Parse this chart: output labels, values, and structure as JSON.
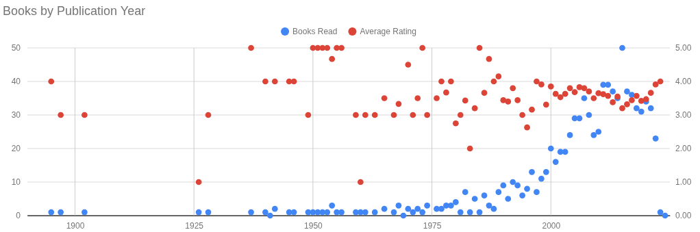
{
  "chart_data": {
    "type": "scatter",
    "title": "Books by Publication Year",
    "xlim": [
      1890,
      2025
    ],
    "xticks": [
      1900,
      1925,
      1950,
      1975,
      2000
    ],
    "ylim": [
      0,
      50
    ],
    "yticks": [
      0,
      10,
      20,
      30,
      40,
      50
    ],
    "y2lim": [
      0,
      5
    ],
    "y2ticks": [
      {
        "value": 0,
        "label": "0.00"
      },
      {
        "value": 1,
        "label": "1.00"
      },
      {
        "value": 2,
        "label": "2.00"
      },
      {
        "value": 3,
        "label": "3.00"
      },
      {
        "value": 4,
        "label": "4.00"
      },
      {
        "value": 5,
        "label": "5.00"
      }
    ],
    "grid": true,
    "legend": "top",
    "marker": "circle",
    "series": [
      {
        "name": "Books Read",
        "color": "#4285f4",
        "x": [
          1895,
          1897,
          1902,
          1926,
          1928,
          1937,
          1940,
          1941,
          1942,
          1945,
          1946,
          1949,
          1950,
          1951,
          1952,
          1953,
          1954,
          1955,
          1956,
          1959,
          1960,
          1961,
          1963,
          1965,
          1967,
          1968,
          1969,
          1970,
          1971,
          1972,
          1973,
          1974,
          1976,
          1977,
          1978,
          1979,
          1980,
          1981,
          1982,
          1983,
          1984,
          1985,
          1986,
          1987,
          1988,
          1989,
          1990,
          1991,
          1992,
          1993,
          1994,
          1995,
          1996,
          1997,
          1998,
          1999,
          2000,
          2001,
          2002,
          2003,
          2004,
          2005,
          2006,
          2007,
          2008,
          2009,
          2010,
          2011,
          2012,
          2013,
          2014,
          2015,
          2016,
          2017,
          2018,
          2019,
          2020,
          2021,
          2022,
          2023,
          2024
        ],
        "values": [
          1,
          1,
          1,
          1,
          1,
          1,
          1,
          0,
          2,
          1,
          1,
          1,
          1,
          1,
          1,
          1,
          3,
          1,
          1,
          1,
          1,
          1,
          1,
          2,
          1,
          3,
          0,
          2,
          1,
          2,
          1,
          3,
          2,
          2,
          3,
          3,
          4,
          1,
          7,
          1,
          5,
          1,
          6,
          3,
          2,
          7,
          9,
          5,
          10,
          9,
          6,
          8,
          13,
          7,
          11,
          13,
          20,
          16,
          19,
          19,
          24,
          29,
          29,
          35,
          30,
          24,
          25,
          39,
          39,
          37,
          35,
          50,
          37,
          36,
          32,
          31,
          34,
          32,
          23,
          1,
          0
        ]
      },
      {
        "name": "Average Rating",
        "color": "#db4437",
        "axis": "y2",
        "x": [
          1895,
          1897,
          1902,
          1926,
          1928,
          1937,
          1940,
          1942,
          1945,
          1946,
          1949,
          1950,
          1951,
          1952,
          1953,
          1954,
          1955,
          1956,
          1959,
          1960,
          1961,
          1963,
          1965,
          1967,
          1968,
          1970,
          1971,
          1972,
          1973,
          1974,
          1976,
          1977,
          1978,
          1979,
          1980,
          1981,
          1982,
          1983,
          1984,
          1985,
          1986,
          1987,
          1988,
          1989,
          1990,
          1991,
          1992,
          1993,
          1994,
          1995,
          1996,
          1997,
          1998,
          1999,
          2000,
          2001,
          2002,
          2003,
          2004,
          2005,
          2006,
          2007,
          2008,
          2009,
          2010,
          2011,
          2012,
          2013,
          2014,
          2015,
          2016,
          2017,
          2018,
          2019,
          2020,
          2021,
          2022,
          2023
        ],
        "values": [
          4,
          3,
          3,
          1,
          3,
          5,
          4,
          4,
          4,
          4,
          3,
          5,
          5,
          5,
          5,
          4.67,
          5,
          5,
          3,
          1,
          3,
          3,
          3.5,
          3,
          3.33,
          4.5,
          3,
          3.5,
          5,
          3,
          3.5,
          4,
          3.67,
          4,
          2.75,
          3,
          3.43,
          2,
          3.2,
          5,
          3.66,
          4.67,
          4,
          4.15,
          3.44,
          3.4,
          3.8,
          3.44,
          3,
          2.63,
          3.16,
          4,
          3.91,
          3.31,
          3.85,
          3.63,
          3.53,
          3.63,
          3.8,
          3.68,
          3.83,
          3.8,
          3.7,
          3.5,
          3.65,
          3.62,
          3.57,
          3.38,
          3.55,
          3.2,
          3.32,
          3.44,
          3.57,
          3.42,
          3.47,
          3.66,
          3.91,
          4
        ]
      }
    ]
  }
}
